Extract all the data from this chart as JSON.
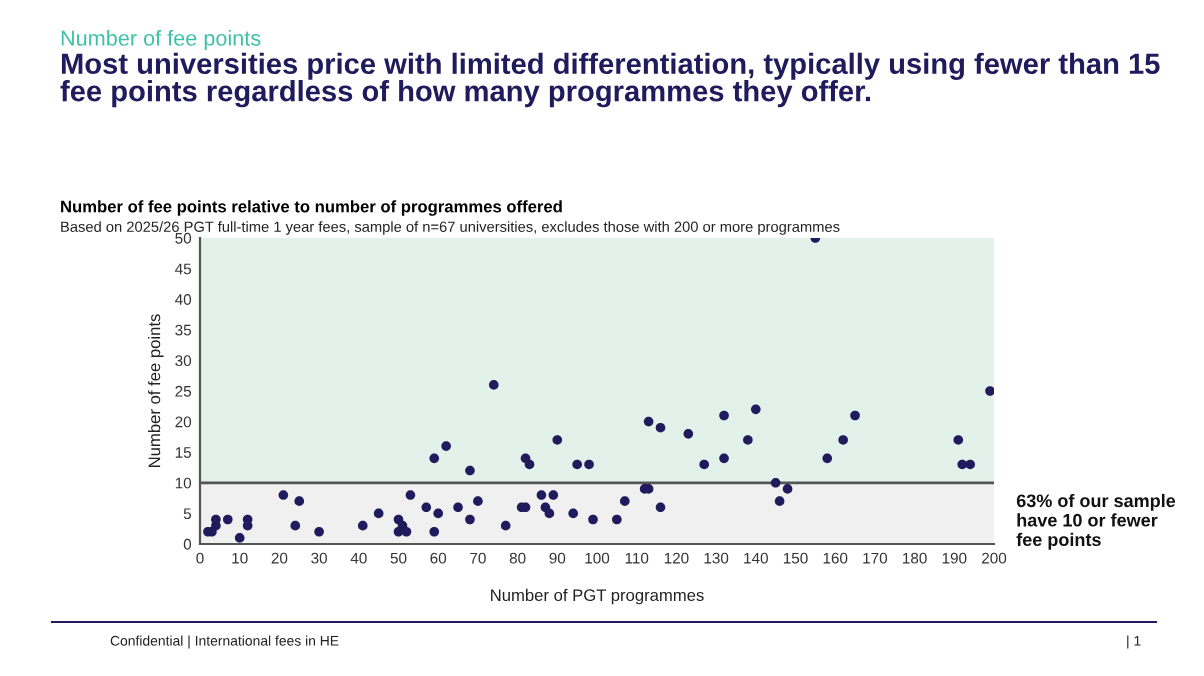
{
  "chart_data": {
    "type": "scatter",
    "title": "Number of fee points relative to number of programmes offered",
    "subtitle": "Based on 2025/26 PGT full-time 1 year fees, sample of n=67 universities, excludes those with 200 or more programmes",
    "xlabel": "Number of PGT programmes",
    "ylabel": "Number of fee points",
    "annotations": [
      "Number of fee points",
      "Most universities price with limited differentiation, typically using fewer than 15\nfee points regardless of how many programmes they offer.",
      "Confidential | International fees in HE",
      "| 1"
    ],
    "x": [
      2,
      3,
      4,
      4,
      7,
      10,
      12,
      12,
      21,
      24,
      25,
      30,
      41,
      45,
      50,
      50,
      51,
      52,
      53,
      57,
      59,
      59,
      60,
      62,
      65,
      68,
      68,
      70,
      74,
      77,
      81,
      82,
      82,
      83,
      86,
      87,
      88,
      89,
      90,
      94,
      95,
      98,
      99,
      105,
      107,
      112,
      113,
      113,
      116,
      116,
      123,
      127,
      132,
      132,
      138,
      140,
      145,
      146,
      148,
      155,
      158,
      162,
      165,
      191,
      192,
      194,
      199
    ],
    "series": [
      {
        "color": "#1f1b5c",
        "values": [
          2,
          2,
          3,
          4,
          4,
          1,
          3,
          4,
          8,
          3,
          7,
          2,
          3,
          5,
          4,
          2,
          3,
          2,
          8,
          6,
          14,
          2,
          5,
          16,
          6,
          12,
          4,
          7,
          26,
          3,
          6,
          6,
          14,
          13,
          8,
          6,
          5,
          8,
          17,
          5,
          13,
          13,
          4,
          4,
          7,
          9,
          9,
          20,
          19,
          6,
          18,
          13,
          21,
          14,
          17,
          22,
          10,
          7,
          9,
          50,
          14,
          17,
          21,
          17,
          13,
          13,
          25
        ]
      }
    ],
    "xlim": [
      0,
      200
    ],
    "xticks": [
      0,
      10,
      20,
      30,
      40,
      50,
      60,
      70,
      80,
      90,
      100,
      110,
      120,
      130,
      140,
      150,
      160,
      170,
      180,
      190,
      200
    ],
    "ylim": [
      0,
      50
    ],
    "yticks": [
      0,
      5,
      10,
      15,
      20,
      25,
      30,
      35,
      40,
      45,
      50
    ],
    "marker": "circle",
    "grid": false,
    "legend": false,
    "ref_lines": [
      {
        "axis": "y",
        "value": 10,
        "label": "63% of our sample\nhave 10 or fewer\nfee points",
        "color": "#555555"
      }
    ],
    "bands": [
      {
        "axis": "y",
        "from": 10,
        "to": 50,
        "color": "#e3f1eb"
      },
      {
        "axis": "y",
        "from": 0,
        "to": 10,
        "color": "#f0f0f0"
      }
    ]
  }
}
